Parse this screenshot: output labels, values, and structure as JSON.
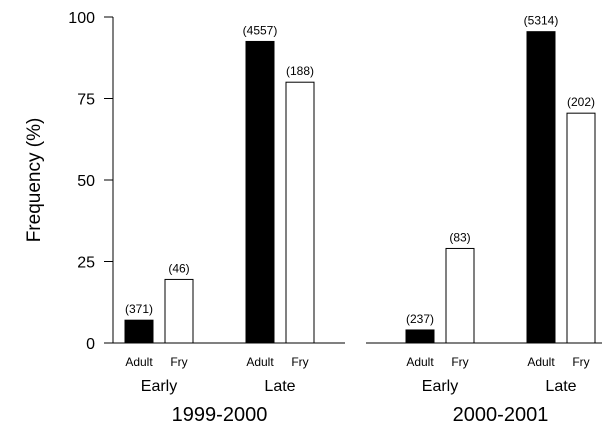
{
  "chart_data": {
    "type": "bar",
    "ylabel": "Frequency (%)",
    "ylim": [
      0,
      100
    ],
    "yticks": [
      0,
      25,
      50,
      75,
      100
    ],
    "legend": "none",
    "grid": false,
    "colors": {
      "Adult": "#000000",
      "Fry": "#ffffff",
      "outline": "#000000"
    },
    "seasons": [
      {
        "label": "1999-2000",
        "periods": [
          {
            "label": "Early",
            "bars": [
              {
                "category": "Adult",
                "value": 7,
                "n_label": "(371)"
              },
              {
                "category": "Fry",
                "value": 19.5,
                "n_label": "(46)"
              }
            ]
          },
          {
            "label": "Late",
            "bars": [
              {
                "category": "Adult",
                "value": 92.5,
                "n_label": "(4557)"
              },
              {
                "category": "Fry",
                "value": 80,
                "n_label": "(188)"
              }
            ]
          }
        ]
      },
      {
        "label": "2000-2001",
        "periods": [
          {
            "label": "Early",
            "bars": [
              {
                "category": "Adult",
                "value": 4,
                "n_label": "(237)"
              },
              {
                "category": "Fry",
                "value": 29,
                "n_label": "(83)"
              }
            ]
          },
          {
            "label": "Late",
            "bars": [
              {
                "category": "Adult",
                "value": 95.5,
                "n_label": "(5314)"
              },
              {
                "category": "Fry",
                "value": 70.5,
                "n_label": "(202)"
              }
            ]
          }
        ]
      }
    ]
  }
}
